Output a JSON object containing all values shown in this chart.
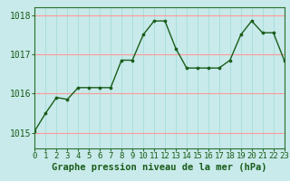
{
  "x": [
    0,
    1,
    2,
    3,
    4,
    5,
    6,
    7,
    8,
    9,
    10,
    11,
    12,
    13,
    14,
    15,
    16,
    17,
    18,
    19,
    20,
    21,
    22,
    23
  ],
  "y": [
    1015.05,
    1015.5,
    1015.9,
    1015.85,
    1016.15,
    1016.15,
    1016.15,
    1016.15,
    1016.85,
    1016.85,
    1017.5,
    1017.85,
    1017.85,
    1017.15,
    1016.65,
    1016.65,
    1016.65,
    1016.65,
    1016.85,
    1017.5,
    1017.85,
    1017.55,
    1017.55,
    1016.85
  ],
  "line_color": "#1a5c1a",
  "marker_color": "#1a5c1a",
  "bg_color": "#c8eaea",
  "grid_color_h": "#ff9999",
  "grid_color_v": "#aadddd",
  "title": "Graphe pression niveau de la mer (hPa)",
  "yticks": [
    1015,
    1016,
    1017,
    1018
  ],
  "ylim": [
    1014.6,
    1018.2
  ],
  "xlim": [
    0,
    23
  ],
  "xticks": [
    0,
    1,
    2,
    3,
    4,
    5,
    6,
    7,
    8,
    9,
    10,
    11,
    12,
    13,
    14,
    15,
    16,
    17,
    18,
    19,
    20,
    21,
    22,
    23
  ],
  "title_fontsize": 7.5,
  "tick_fontsize": 6.5
}
